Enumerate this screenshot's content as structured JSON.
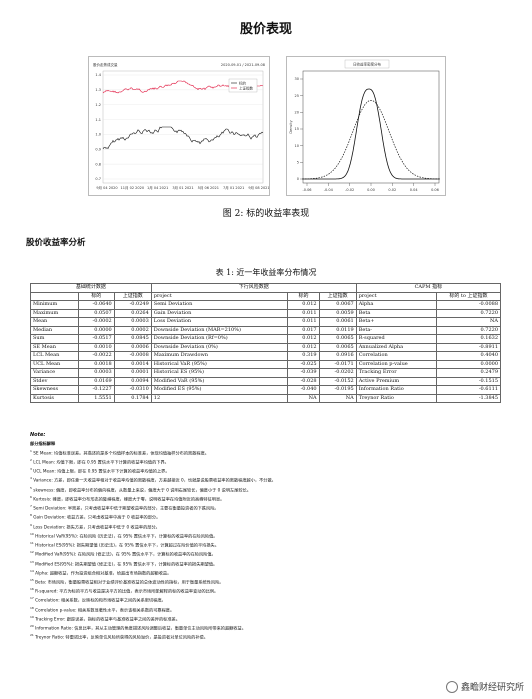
{
  "title": "股价表现",
  "figure": {
    "caption": "图 2: 标的收益率表现",
    "price_chart": {
      "title": "股价走势成交量",
      "date_range": "2020-09-01 / 2021-09-08",
      "legend": [
        "标的",
        "上证指数"
      ],
      "y_ticks": [
        "1.4",
        "1.3",
        "1.2",
        "1.1",
        "1.0",
        "0.9",
        "0.8",
        "0.7"
      ],
      "x_ticks": [
        "9月 04 2020",
        "11月 02 2020",
        "1月 04 2021",
        "3月 01 2021",
        "5月 06 2021",
        "7月 01 2021",
        "9月 08 2021"
      ]
    },
    "density_chart": {
      "title": "日收益率密度分布",
      "ylabel": "Density",
      "y_ticks": [
        "30",
        "25",
        "20",
        "15",
        "10",
        "5",
        "0"
      ],
      "x_ticks": [
        "-0.06",
        "-0.04",
        "-0.02",
        "0.00",
        "0.02",
        "0.04",
        "0.06"
      ]
    }
  },
  "section_heading": "股价收益率分析",
  "table": {
    "caption": "表 1: 近一年收益率分布情况",
    "group_headers": [
      "基础统计数据",
      "下行风险数据",
      "CAPM 指标"
    ],
    "col_headers": [
      "",
      "标的",
      "上证指数",
      "project",
      "标的",
      "上证指数",
      "project",
      "标的 to 上证指数"
    ],
    "rows": [
      [
        "Minimum",
        "-0.0640",
        "-0.0249",
        "Semi Deviation",
        "0.012",
        "0.0067",
        "Alpha",
        "-0.0088"
      ],
      [
        "Maximum",
        "0.0507",
        "0.0264",
        "Gain Deviation",
        "0.011",
        "0.0059",
        "Beta",
        "0.7220"
      ],
      [
        "Mean",
        "-0.0002",
        "0.0003",
        "Loss Deviation",
        "0.011",
        "0.0061",
        "Beta+",
        "NA"
      ],
      [
        "Median",
        "0.0000",
        "0.0002",
        "Downside Deviation (MAR=210%)",
        "0.017",
        "0.0119",
        "Beta-",
        "0.7220"
      ],
      [
        "Sum",
        "-0.0517",
        "0.0845",
        "Downside Deviation (Rf=0%)",
        "0.012",
        "0.0065",
        "R-squared",
        "0.1632"
      ],
      [
        "SE Mean",
        "0.0010",
        "0.0006",
        "Downside Deviation (0%)",
        "0.012",
        "0.0065",
        "Annualized Alpha",
        "-0.8911"
      ],
      [
        "LCL Mean",
        "-0.0022",
        "-0.0008",
        "Maximum Drawdown",
        "0.319",
        "0.0916",
        "Correlation",
        "0.4040"
      ],
      [
        "UCL Mean",
        "0.0018",
        "0.0014",
        "Historical VaR (95%)",
        "-0.025",
        "-0.0171",
        "Correlation p-value",
        "0.0000"
      ],
      [
        "Variance",
        "0.0003",
        "0.0001",
        "Historical ES (95%)",
        "-0.039",
        "-0.0202",
        "Tracking Error",
        "0.2479"
      ],
      [
        "Stdev",
        "0.0169",
        "0.0094",
        "Modified VaR (95%)",
        "-0.028",
        "-0.0152",
        "Active Premium",
        "-0.1515"
      ],
      [
        "Skewness",
        "-0.1227",
        "-0.0310",
        "Modified ES (95%)",
        "-0.040",
        "-0.0195",
        "Information Ratio",
        "-0.6111"
      ],
      [
        "Kurtosis",
        "1.5551",
        "0.1784",
        "12",
        "NA",
        "NA",
        "Treynor Ratio",
        "-1.3845"
      ]
    ]
  },
  "notes": {
    "heading": "Note:",
    "subheading": "部分指标解释",
    "items": [
      "SE Mean: 均值标准误差。其描述的是多个均值样本的标准差，体现均值抽样分布的离散程度。",
      "LCL Mean: 均值下限，即在 0.95 置信水平下计算的收益率均值的下界。",
      "UCL Mean: 均值上限，即在 0.95 置信水平下计算的收益率均值的上界。",
      "Variance: 方差，即任意一天收益率相对于收益率均值的离散程度，方差越接近 0，也就是说股票收益率的离散程度越小，不分散。",
      "skewness: 偏度，即收益率分布的偏向程度，从数量上来说，偏度大于 0 说明右尾较长，偏度小于 0 说明左尾较长。",
      "Kurtosis: 峰度，即收益率分布形态的陡峭程度，峰度大于零，说明收益率在均值附近的高峰特征明显。",
      "Semi Deviation: 半离差，只考虑收益率中低于期望收益率的部分，主要在衡量投资者的下跌风险。",
      "Gain Deviation: 收益方差，只考虑收益率中高于 0 收益率的部分。",
      "Loss Deviation: 损失方差，只考虑收益率中低于 0 收益率的部分。",
      "Historical VaR(95%): 在险风险 (历史法)，在 95% 置信水平下，计算标的收益率的在险风险值。",
      "Historical ES(95%): 损失期望值 (历史法)，在 95% 置信水平下，计算超过在险价值的平均损失。",
      "Modified VaR(95%): 在险风险 (修正法)，在 95% 置信水平下，计算标的收益率的在险风险值。",
      "Modified ES(95%): 损失期望值 (修正法)，在 95% 置信水平下，计算标的收益率的损失期望值。",
      "Alpha: 超额收益，作为投资组合相对基准，给超出市场指数的超额收益。",
      "Beta: 市场风险，衡量股票收益相对于业绩评价基准收益的总体波动性的指标，用于衡量系统性风险。",
      "R-squared: 平方为标的平方与收益是决平方的比值，表示市场所能解释的标的收益率变动的比例。",
      "Correlation: 相关系数，反映标的和市场收益率之间的关系密切程度。",
      "Correlation p-value: 相关系数显著性水平，表示该相关系数的可靠程度。",
      "Tracking Error: 跟踪误差，指标的收益率与基准收益率之间的差异的标准差。",
      "Information Ratio: 信息比率，其从主动管理的角度描述风险调整后收益，衡量单位主动风险所带来的超额收益。",
      "Treynor Ratio: 特雷诺比率，反映单位风险所获得的风险溢价，是投资者对单位风险的补偿。"
    ]
  },
  "watermark": "鑫瞻财经研究所"
}
